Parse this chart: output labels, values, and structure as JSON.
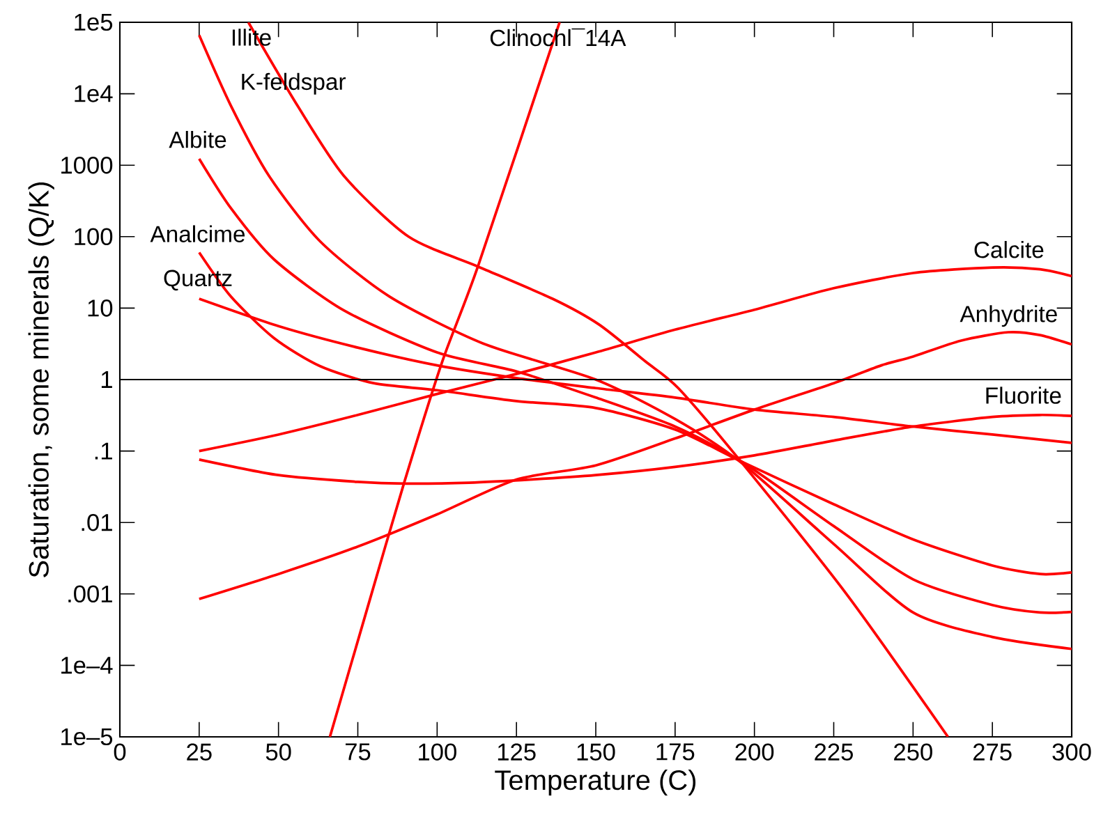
{
  "chart_data": {
    "type": "line",
    "xlabel": "Temperature (C)",
    "ylabel": "Saturation, some minerals (Q/K)",
    "log": "y",
    "xlim": [
      0,
      300
    ],
    "ylim": [
      1e-05,
      100000.0
    ],
    "xticks": [
      0,
      25,
      50,
      75,
      100,
      125,
      150,
      175,
      200,
      225,
      250,
      275,
      300
    ],
    "yticks": [
      {
        "value": 100000.0,
        "label": "1e5"
      },
      {
        "value": 10000.0,
        "label": "1e4"
      },
      {
        "value": 1000,
        "label": "1000"
      },
      {
        "value": 100,
        "label": "100"
      },
      {
        "value": 10,
        "label": "10"
      },
      {
        "value": 1,
        "label": "1"
      },
      {
        "value": 0.1,
        "label": ".1"
      },
      {
        "value": 0.01,
        "label": ".01"
      },
      {
        "value": 0.001,
        "label": ".001"
      },
      {
        "value": 0.0001,
        "label": "1e–4"
      },
      {
        "value": 1e-05,
        "label": "1e–5"
      }
    ],
    "grid": false,
    "legend": false,
    "marker": "none",
    "line_style": "solid",
    "ref_lines": [
      {
        "axis": "y",
        "value": 1,
        "color": "#000000"
      }
    ],
    "series": [
      {
        "name": "Illite",
        "color": "#ff0000",
        "x": [
          40.5,
          56,
          70.6,
          91,
          113,
          136.4,
          151,
          165.6,
          176,
          195,
          229,
          261
        ],
        "values": [
          100000,
          6800,
          710,
          100,
          38,
          13.5,
          5.9,
          1.8,
          0.76,
          0.078,
          0.001,
          1e-05
        ]
      },
      {
        "name": "K-feldspar",
        "color": "#ff0000",
        "x": [
          25,
          35,
          47,
          63,
          85,
          114.5,
          150,
          175,
          196,
          225,
          250,
          275,
          300
        ],
        "values": [
          66000,
          6800,
          710,
          87,
          14.5,
          3.2,
          1.0,
          0.28,
          0.068,
          0.005,
          0.00055,
          0.00025,
          0.00017
        ]
      },
      {
        "name": "Albite",
        "color": "#ff0000",
        "x": [
          25,
          35,
          48.6,
          70.6,
          100,
          125,
          150,
          175,
          196,
          225,
          250,
          275,
          290,
          300
        ],
        "values": [
          1230,
          250,
          48,
          9.3,
          2.4,
          1.3,
          0.56,
          0.22,
          0.071,
          0.0089,
          0.0016,
          0.0007,
          0.00055,
          0.00056
        ]
      },
      {
        "name": "Analcime",
        "color": "#ff0000",
        "x": [
          25,
          35,
          48.6,
          63,
          80,
          100,
          125,
          150,
          175,
          196,
          225,
          250,
          275,
          290,
          300
        ],
        "values": [
          60,
          14.5,
          3.8,
          1.55,
          0.89,
          0.71,
          0.5,
          0.4,
          0.2,
          0.071,
          0.018,
          0.0058,
          0.0025,
          0.0019,
          0.002
        ]
      },
      {
        "name": "Quartz",
        "color": "#ff0000",
        "x": [
          25,
          50,
          75,
          100,
          125,
          150,
          175,
          200,
          225,
          250,
          275,
          300
        ],
        "values": [
          13.5,
          5.6,
          2.8,
          1.58,
          1.05,
          0.76,
          0.56,
          0.38,
          0.3,
          0.22,
          0.17,
          0.13
        ]
      },
      {
        "name": "Clinochl¯14A",
        "color": "#ff0000",
        "x": [
          66.2,
          78,
          89.6,
          101.6,
          113,
          138.6
        ],
        "values": [
          1e-05,
          0.00063,
          0.036,
          1.78,
          40,
          100000
        ]
      },
      {
        "name": "Calcite",
        "color": "#ff0000",
        "x": [
          25,
          50,
          75,
          100,
          125,
          150,
          175,
          200,
          225,
          250,
          275,
          290,
          300
        ],
        "values": [
          0.1,
          0.17,
          0.32,
          0.63,
          1.2,
          2.4,
          5,
          9.5,
          19,
          31,
          37,
          35,
          28
        ]
      },
      {
        "name": "Anhydrite",
        "color": "#ff0000",
        "x": [
          25,
          50,
          75,
          100,
          125,
          150,
          175,
          200,
          225,
          240,
          250,
          265,
          280,
          290,
          300
        ],
        "values": [
          0.00085,
          0.0019,
          0.0046,
          0.013,
          0.04,
          0.063,
          0.15,
          0.38,
          0.89,
          1.58,
          2.1,
          3.5,
          4.6,
          4.2,
          3.1
        ]
      },
      {
        "name": "Fluorite",
        "color": "#ff0000",
        "x": [
          25,
          50,
          75,
          90,
          110,
          130,
          150,
          175,
          200,
          225,
          250,
          275,
          290,
          300
        ],
        "values": [
          0.076,
          0.046,
          0.037,
          0.035,
          0.036,
          0.04,
          0.046,
          0.06,
          0.087,
          0.14,
          0.22,
          0.3,
          0.32,
          0.31
        ]
      }
    ]
  }
}
